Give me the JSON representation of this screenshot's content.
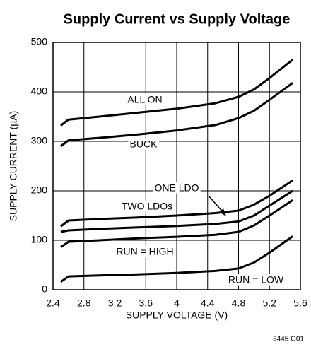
{
  "chart_data": {
    "type": "line",
    "title": "Supply Current vs Supply Voltage",
    "x_label": "SUPPLY VOLTAGE (V)",
    "y_label": "SUPPLY CURRENT (µA)",
    "footnote": "3445 G01",
    "x": [
      2.5,
      2.6,
      3.0,
      3.5,
      4.0,
      4.5,
      4.8,
      5.0,
      5.2,
      5.5
    ],
    "series": [
      {
        "name": "ALL ON",
        "color": "#000000",
        "values": [
          332,
          344,
          350,
          358,
          366,
          377,
          390,
          405,
          428,
          465
        ]
      },
      {
        "name": "BUCK",
        "color": "#000000",
        "values": [
          290,
          302,
          307,
          314,
          322,
          333,
          347,
          362,
          384,
          418
        ]
      },
      {
        "name": "TWO LDOs",
        "color": "#000000",
        "values": [
          128,
          140,
          143,
          146,
          150,
          155,
          160,
          172,
          190,
          221
        ]
      },
      {
        "name": "ONE LDO",
        "color": "#000000",
        "values": [
          117,
          120,
          123,
          126,
          129,
          133,
          138,
          150,
          170,
          200
        ]
      },
      {
        "name": "RUN = HIGH",
        "color": "#000000",
        "values": [
          86,
          97,
          100,
          104,
          107,
          111,
          117,
          130,
          150,
          181
        ]
      },
      {
        "name": "RUN = LOW",
        "color": "#000000",
        "values": [
          16,
          27,
          29,
          31,
          34,
          38,
          43,
          55,
          75,
          108
        ]
      }
    ],
    "xlim": [
      2.4,
      5.6
    ],
    "xticks": [
      2.4,
      2.8,
      3.2,
      3.6,
      4,
      4.4,
      4.8,
      5.2,
      5.6
    ],
    "ylim": [
      0,
      500
    ],
    "yticks": [
      0,
      100,
      200,
      300,
      400,
      500
    ],
    "grid": true
  }
}
